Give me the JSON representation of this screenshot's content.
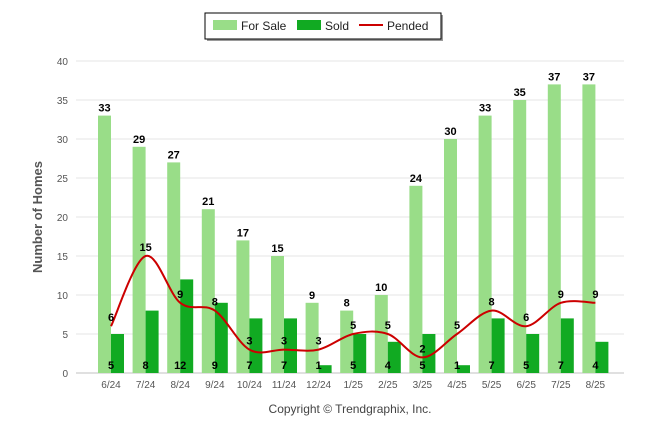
{
  "chart_data": {
    "type": "bar",
    "categories": [
      "6/24",
      "7/24",
      "8/24",
      "9/24",
      "10/24",
      "11/24",
      "12/24",
      "1/25",
      "2/25",
      "3/25",
      "4/25",
      "5/25",
      "6/25",
      "7/25",
      "8/25"
    ],
    "series": [
      {
        "name": "For Sale",
        "kind": "bar",
        "color": "#99dd88",
        "values": [
          33,
          29,
          27,
          21,
          17,
          15,
          9,
          8,
          10,
          24,
          30,
          33,
          35,
          37,
          37
        ]
      },
      {
        "name": "Sold",
        "kind": "bar",
        "color": "#11aa22",
        "values": [
          5,
          8,
          12,
          9,
          7,
          7,
          1,
          5,
          4,
          5,
          1,
          7,
          5,
          7,
          4
        ]
      },
      {
        "name": "Pended",
        "kind": "line",
        "color": "#cc0000",
        "values": [
          6,
          15,
          9,
          8,
          3,
          3,
          3,
          5,
          5,
          2,
          5,
          8,
          6,
          9,
          9
        ]
      }
    ],
    "ylabel": "Number of Homes",
    "xlabel": "",
    "ylim": [
      0,
      40
    ],
    "yticks": [
      0,
      5,
      10,
      15,
      20,
      25,
      30,
      35,
      40
    ],
    "grid": true,
    "legend_position": "top-center"
  },
  "footer": "Copyright © Trendgraphix, Inc."
}
